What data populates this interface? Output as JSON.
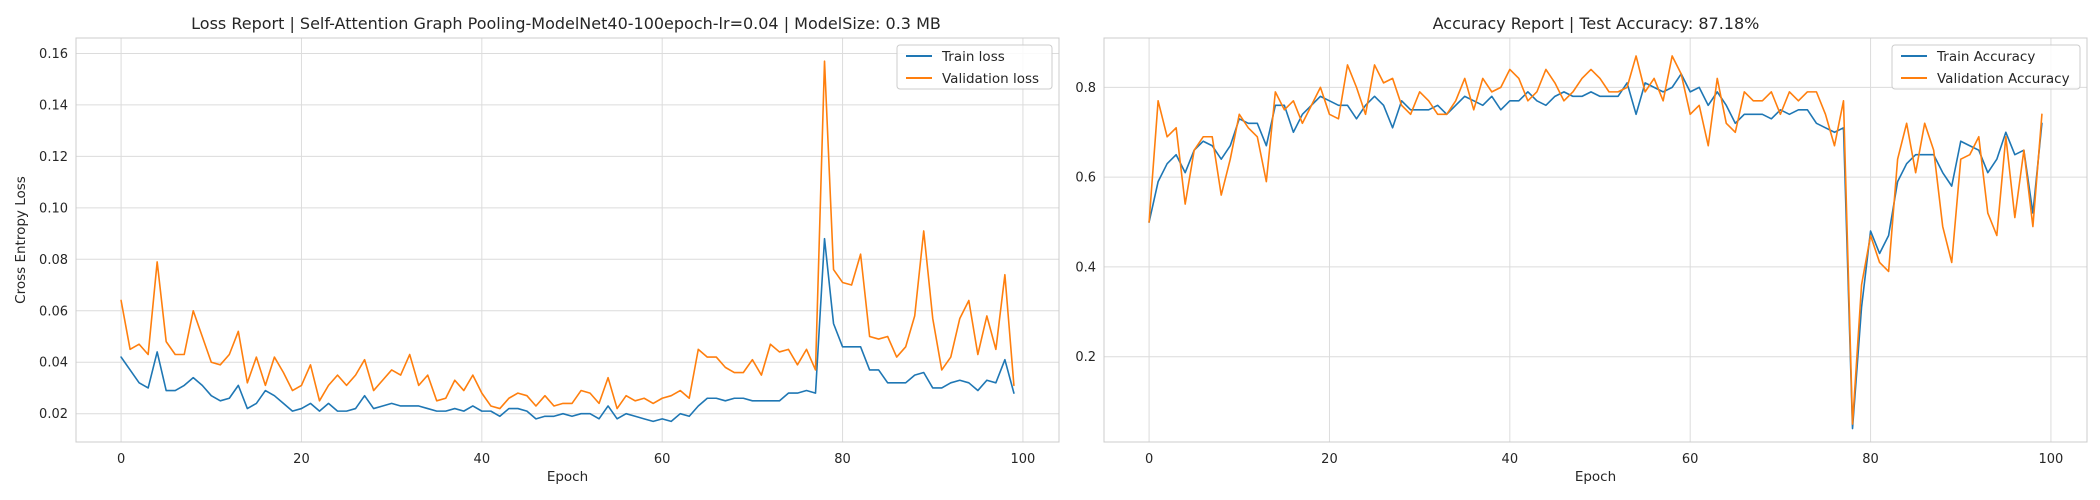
{
  "colors": {
    "train": "#1f77b4",
    "validation": "#ff7f0e",
    "grid": "#dcdcdc",
    "spine": "#cccccc",
    "background": "#ffffff"
  },
  "chart_data": [
    {
      "type": "line",
      "title": "Loss Report | Self-Attention Graph Pooling-ModelNet40-100epoch-lr=0.04 | ModelSize: 0.3 MB",
      "xlabel": "Epoch",
      "ylabel": "Cross Entropy Loss",
      "xlim": [
        -5,
        104
      ],
      "ylim": [
        0.009,
        0.166
      ],
      "xticks": [
        0,
        20,
        40,
        60,
        80,
        100
      ],
      "yticks": [
        0.02,
        0.04,
        0.06,
        0.08,
        0.1,
        0.12,
        0.14,
        0.16
      ],
      "ytick_labels": [
        "0.02",
        "0.04",
        "0.06",
        "0.08",
        "0.10",
        "0.12",
        "0.14",
        "0.16"
      ],
      "grid": true,
      "legend": "top-right",
      "series": [
        {
          "name": "Train loss",
          "color_key": "train",
          "values": [
            0.042,
            0.037,
            0.032,
            0.03,
            0.044,
            0.029,
            0.029,
            0.031,
            0.034,
            0.031,
            0.027,
            0.025,
            0.026,
            0.031,
            0.022,
            0.024,
            0.029,
            0.027,
            0.024,
            0.021,
            0.022,
            0.024,
            0.021,
            0.024,
            0.021,
            0.021,
            0.022,
            0.027,
            0.022,
            0.023,
            0.024,
            0.023,
            0.023,
            0.023,
            0.022,
            0.021,
            0.021,
            0.022,
            0.021,
            0.023,
            0.021,
            0.021,
            0.019,
            0.022,
            0.022,
            0.021,
            0.018,
            0.019,
            0.019,
            0.02,
            0.019,
            0.02,
            0.02,
            0.018,
            0.023,
            0.018,
            0.02,
            0.019,
            0.018,
            0.017,
            0.018,
            0.017,
            0.02,
            0.019,
            0.023,
            0.026,
            0.026,
            0.025,
            0.026,
            0.026,
            0.025,
            0.025,
            0.025,
            0.025,
            0.028,
            0.028,
            0.029,
            0.028,
            0.088,
            0.055,
            0.046,
            0.046,
            0.046,
            0.037,
            0.037,
            0.032,
            0.032,
            0.032,
            0.035,
            0.036,
            0.03,
            0.03,
            0.032,
            0.033,
            0.032,
            0.029,
            0.033,
            0.032,
            0.041,
            0.028
          ]
        },
        {
          "name": "Validation loss",
          "color_key": "validation",
          "values": [
            0.064,
            0.045,
            0.047,
            0.043,
            0.079,
            0.048,
            0.043,
            0.043,
            0.06,
            0.05,
            0.04,
            0.039,
            0.043,
            0.052,
            0.032,
            0.042,
            0.031,
            0.042,
            0.036,
            0.029,
            0.031,
            0.039,
            0.025,
            0.031,
            0.035,
            0.031,
            0.035,
            0.041,
            0.029,
            0.033,
            0.037,
            0.035,
            0.043,
            0.031,
            0.035,
            0.025,
            0.026,
            0.033,
            0.029,
            0.035,
            0.028,
            0.023,
            0.022,
            0.026,
            0.028,
            0.027,
            0.023,
            0.027,
            0.023,
            0.024,
            0.024,
            0.029,
            0.028,
            0.024,
            0.034,
            0.022,
            0.027,
            0.025,
            0.026,
            0.024,
            0.026,
            0.027,
            0.029,
            0.026,
            0.045,
            0.042,
            0.042,
            0.038,
            0.036,
            0.036,
            0.041,
            0.035,
            0.047,
            0.044,
            0.045,
            0.039,
            0.045,
            0.037,
            0.157,
            0.076,
            0.071,
            0.07,
            0.082,
            0.05,
            0.049,
            0.05,
            0.042,
            0.046,
            0.058,
            0.091,
            0.057,
            0.037,
            0.042,
            0.057,
            0.064,
            0.043,
            0.058,
            0.045,
            0.074,
            0.031
          ]
        }
      ]
    },
    {
      "type": "line",
      "title": "Accuracy Report | Test Accuracy: 87.18%",
      "xlabel": "Epoch",
      "ylabel": "",
      "xlim": [
        -5,
        104
      ],
      "ylim": [
        0.01,
        0.91
      ],
      "xticks": [
        0,
        20,
        40,
        60,
        80,
        100
      ],
      "yticks": [
        0.2,
        0.4,
        0.6,
        0.8
      ],
      "ytick_labels": [
        "0.2",
        "0.4",
        "0.6",
        "0.8"
      ],
      "grid": true,
      "legend": "top-right",
      "series": [
        {
          "name": "Train Accuracy",
          "color_key": "train",
          "values": [
            0.5,
            0.59,
            0.63,
            0.65,
            0.61,
            0.66,
            0.68,
            0.67,
            0.64,
            0.67,
            0.73,
            0.72,
            0.72,
            0.67,
            0.76,
            0.76,
            0.7,
            0.74,
            0.76,
            0.78,
            0.77,
            0.76,
            0.76,
            0.73,
            0.76,
            0.78,
            0.76,
            0.71,
            0.77,
            0.75,
            0.75,
            0.75,
            0.76,
            0.74,
            0.76,
            0.78,
            0.77,
            0.76,
            0.78,
            0.75,
            0.77,
            0.77,
            0.79,
            0.77,
            0.76,
            0.78,
            0.79,
            0.78,
            0.78,
            0.79,
            0.78,
            0.78,
            0.78,
            0.81,
            0.74,
            0.81,
            0.8,
            0.79,
            0.8,
            0.83,
            0.79,
            0.8,
            0.76,
            0.79,
            0.76,
            0.72,
            0.74,
            0.74,
            0.74,
            0.73,
            0.75,
            0.74,
            0.75,
            0.75,
            0.72,
            0.71,
            0.7,
            0.71,
            0.04,
            0.31,
            0.48,
            0.43,
            0.47,
            0.59,
            0.63,
            0.65,
            0.65,
            0.65,
            0.61,
            0.58,
            0.68,
            0.67,
            0.66,
            0.61,
            0.64,
            0.7,
            0.65,
            0.66,
            0.52,
            0.72
          ]
        },
        {
          "name": "Validation Accuracy",
          "color_key": "validation",
          "values": [
            0.5,
            0.77,
            0.69,
            0.71,
            0.54,
            0.66,
            0.69,
            0.69,
            0.56,
            0.64,
            0.74,
            0.71,
            0.69,
            0.59,
            0.79,
            0.75,
            0.77,
            0.72,
            0.76,
            0.8,
            0.74,
            0.73,
            0.85,
            0.8,
            0.74,
            0.85,
            0.81,
            0.82,
            0.76,
            0.74,
            0.79,
            0.77,
            0.74,
            0.74,
            0.77,
            0.82,
            0.75,
            0.82,
            0.79,
            0.8,
            0.84,
            0.82,
            0.77,
            0.79,
            0.84,
            0.81,
            0.77,
            0.79,
            0.82,
            0.84,
            0.82,
            0.79,
            0.79,
            0.8,
            0.87,
            0.79,
            0.82,
            0.77,
            0.87,
            0.83,
            0.74,
            0.76,
            0.67,
            0.82,
            0.72,
            0.7,
            0.79,
            0.77,
            0.77,
            0.79,
            0.74,
            0.79,
            0.77,
            0.79,
            0.79,
            0.74,
            0.67,
            0.77,
            0.05,
            0.36,
            0.47,
            0.41,
            0.39,
            0.64,
            0.72,
            0.61,
            0.72,
            0.66,
            0.49,
            0.41,
            0.64,
            0.65,
            0.69,
            0.52,
            0.47,
            0.69,
            0.51,
            0.66,
            0.49,
            0.74
          ]
        }
      ]
    }
  ]
}
